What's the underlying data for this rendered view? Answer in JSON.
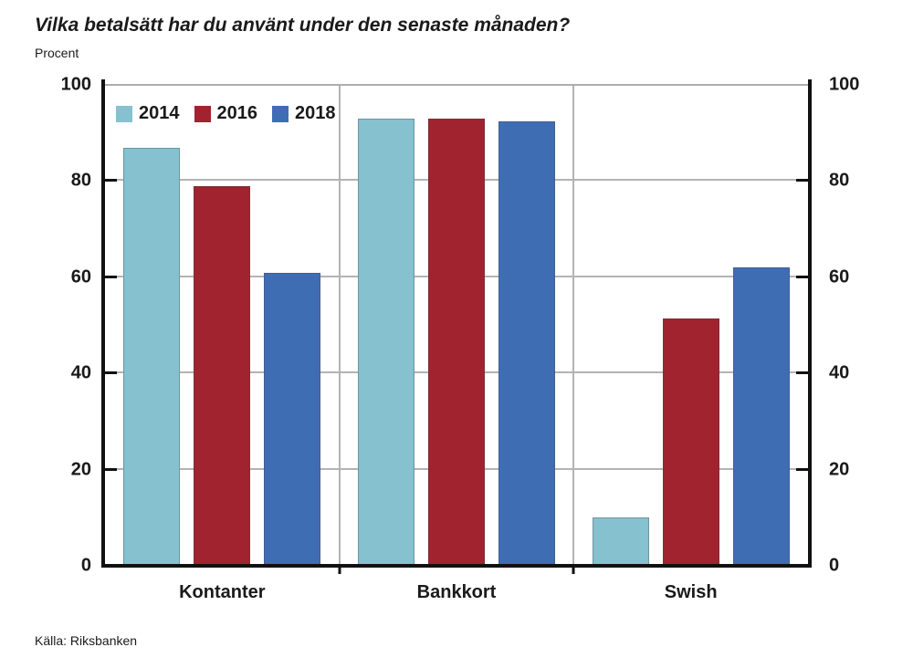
{
  "title": "Vilka betalsätt har du använt under den senaste månaden?",
  "subtitle": "Procent",
  "source": "Källa: Riksbanken",
  "colors": {
    "series_2014": "#85c1cf",
    "series_2016": "#a0232f",
    "series_2018": "#3f6db4",
    "gridline": "#b3b3b3",
    "axis": "#111111",
    "text": "#1a1a1a"
  },
  "chart_data": {
    "type": "bar",
    "title": "Vilka betalsätt har du använt under den senaste månaden?",
    "ylabel": "Procent",
    "categories": [
      "Kontanter",
      "Bankkort",
      "Swish"
    ],
    "series": [
      {
        "name": "2014",
        "color": "#85c1cf",
        "values": [
          87,
          93,
          10
        ]
      },
      {
        "name": "2016",
        "color": "#a0232f",
        "values": [
          79,
          93,
          51.5
        ]
      },
      {
        "name": "2018",
        "color": "#3f6db4",
        "values": [
          61,
          92.5,
          62
        ]
      }
    ],
    "ylim": [
      0,
      100
    ],
    "yticks": [
      0,
      20,
      40,
      60,
      80,
      100
    ],
    "yticks_sides": "both",
    "grid": "horizontal gridlines at yticks, vertical separators between category groups",
    "legend_position": "top-left inside plot"
  }
}
